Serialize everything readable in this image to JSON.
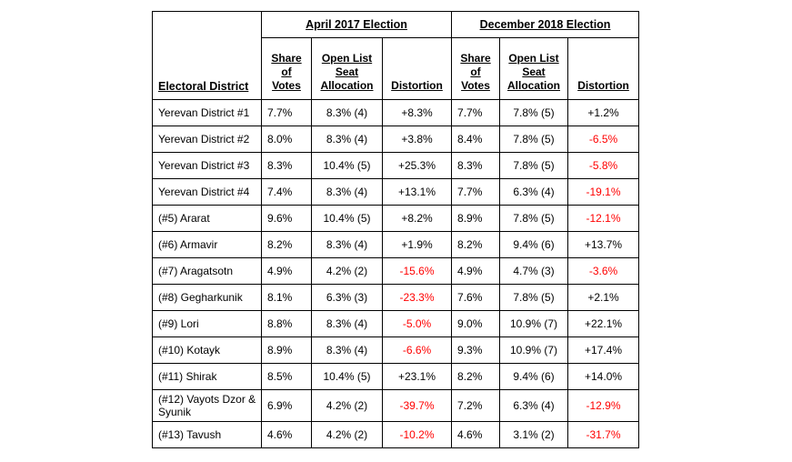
{
  "headers": {
    "district": "Electoral District",
    "election1": "April 2017 Election",
    "election2": "December 2018 Election",
    "share": "Share of Votes",
    "allocation": "Open List Seat Allocation",
    "distortion": "Distortion"
  },
  "rows": [
    {
      "district": "Yerevan District #1",
      "a_share": "7.7%",
      "a_alloc": "8.3% (4)",
      "a_dist": "+8.3%",
      "b_share": "7.7%",
      "b_alloc": "7.8% (5)",
      "b_dist": "+1.2%"
    },
    {
      "district": "Yerevan District #2",
      "a_share": "8.0%",
      "a_alloc": "8.3% (4)",
      "a_dist": "+3.8%",
      "b_share": "8.4%",
      "b_alloc": "7.8% (5)",
      "b_dist": "-6.5%"
    },
    {
      "district": "Yerevan District #3",
      "a_share": "8.3%",
      "a_alloc": "10.4% (5)",
      "a_dist": "+25.3%",
      "b_share": "8.3%",
      "b_alloc": "7.8% (5)",
      "b_dist": "-5.8%"
    },
    {
      "district": "Yerevan District #4",
      "a_share": "7.4%",
      "a_alloc": "8.3% (4)",
      "a_dist": "+13.1%",
      "b_share": "7.7%",
      "b_alloc": "6.3% (4)",
      "b_dist": "-19.1%"
    },
    {
      "district": "(#5) Ararat",
      "a_share": "9.6%",
      "a_alloc": "10.4% (5)",
      "a_dist": "+8.2%",
      "b_share": "8.9%",
      "b_alloc": "7.8% (5)",
      "b_dist": "-12.1%"
    },
    {
      "district": "(#6) Armavir",
      "a_share": "8.2%",
      "a_alloc": "8.3% (4)",
      "a_dist": "+1.9%",
      "b_share": "8.2%",
      "b_alloc": "9.4% (6)",
      "b_dist": "+13.7%"
    },
    {
      "district": "(#7) Aragatsotn",
      "a_share": "4.9%",
      "a_alloc": "4.2% (2)",
      "a_dist": "-15.6%",
      "b_share": "4.9%",
      "b_alloc": "4.7% (3)",
      "b_dist": "-3.6%"
    },
    {
      "district": "(#8) Gegharkunik",
      "a_share": "8.1%",
      "a_alloc": "6.3% (3)",
      "a_dist": "-23.3%",
      "b_share": "7.6%",
      "b_alloc": "7.8% (5)",
      "b_dist": "+2.1%"
    },
    {
      "district": "(#9) Lori",
      "a_share": "8.8%",
      "a_alloc": "8.3% (4)",
      "a_dist": "-5.0%",
      "b_share": "9.0%",
      "b_alloc": "10.9% (7)",
      "b_dist": "+22.1%"
    },
    {
      "district": "(#10) Kotayk",
      "a_share": "8.9%",
      "a_alloc": "8.3% (4)",
      "a_dist": "-6.6%",
      "b_share": "9.3%",
      "b_alloc": "10.9% (7)",
      "b_dist": "+17.4%"
    },
    {
      "district": "(#11) Shirak",
      "a_share": "8.5%",
      "a_alloc": "10.4% (5)",
      "a_dist": "+23.1%",
      "b_share": "8.2%",
      "b_alloc": "9.4% (6)",
      "b_dist": "+14.0%"
    },
    {
      "district": "(#12) Vayots Dzor & Syunik",
      "a_share": "6.9%",
      "a_alloc": "4.2% (2)",
      "a_dist": "-39.7%",
      "b_share": "7.2%",
      "b_alloc": "6.3% (4)",
      "b_dist": "-12.9%"
    },
    {
      "district": "(#13) Tavush",
      "a_share": "4.6%",
      "a_alloc": "4.2% (2)",
      "a_dist": "-10.2%",
      "b_share": "4.6%",
      "b_alloc": "3.1% (2)",
      "b_dist": "-31.7%"
    }
  ],
  "colors": {
    "negative": "#ff0000",
    "positive": "#000000",
    "border": "#000000"
  }
}
